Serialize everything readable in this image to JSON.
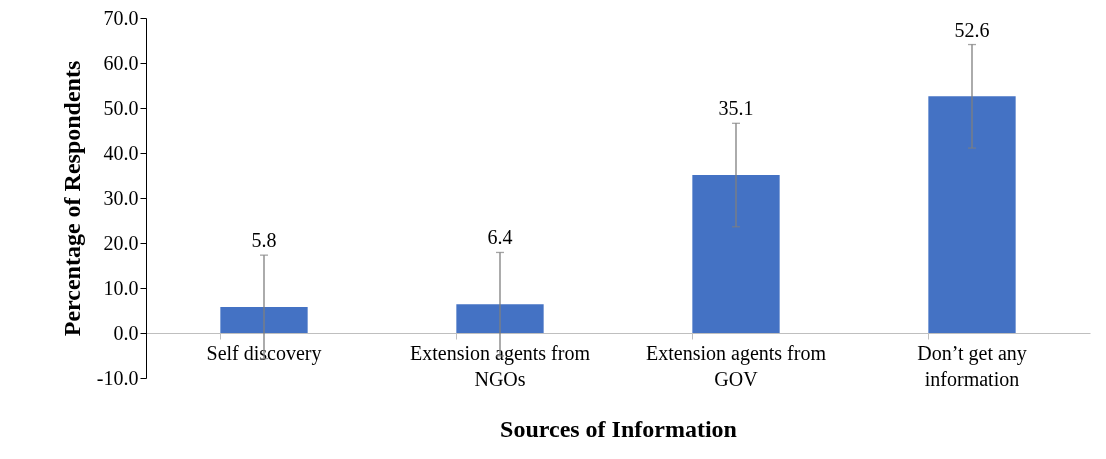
{
  "chart_data": {
    "type": "bar",
    "xlabel": "Sources of Information",
    "ylabel": "Percentage of Respondents",
    "categories": [
      "Self discovery",
      "Extension agents from NGOs",
      "Extension agents from GOV",
      "Don’t get any information"
    ],
    "values": [
      5.8,
      6.4,
      35.1,
      52.6
    ],
    "errors": [
      11.5,
      11.5,
      11.5,
      11.5
    ],
    "color": "#4472c4",
    "ylim": [
      -10,
      70
    ],
    "yticks": [
      {
        "value": -10,
        "label": "-10.0"
      },
      {
        "value": 0,
        "label": "0.0"
      },
      {
        "value": 10,
        "label": "10.0"
      },
      {
        "value": 20,
        "label": "20.0"
      },
      {
        "value": 30,
        "label": "30.0"
      },
      {
        "value": 40,
        "label": "40.0"
      },
      {
        "value": 50,
        "label": "50.0"
      },
      {
        "value": 60,
        "label": "60.0"
      },
      {
        "value": 70,
        "label": "70.0"
      }
    ],
    "grid": false,
    "data_labels": true
  }
}
